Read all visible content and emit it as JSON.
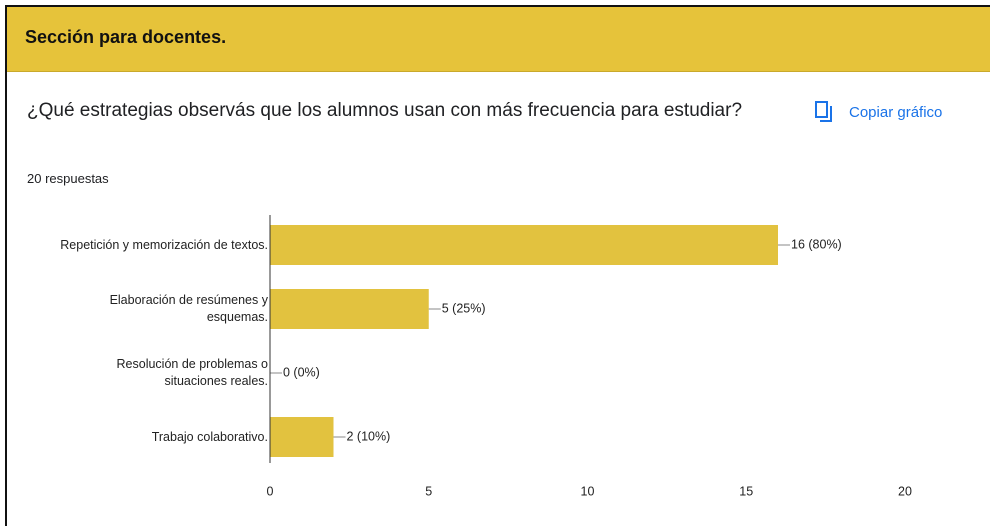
{
  "header": {
    "title": "Sección para docentes."
  },
  "question": {
    "title": "¿Qué estrategias observás que los alumnos usan con más frecuencia para estudiar?",
    "responses": "20 respuestas",
    "copy_button": "Copiar gráfico"
  },
  "chart_data": {
    "type": "hbar",
    "categories": [
      "Repetición y memorización de textos.",
      "Elaboración de resúmenes y esquemas.",
      "Resolución de problemas o situaciones reales.",
      "Trabajo colaborativo."
    ],
    "values": [
      16,
      5,
      0,
      2
    ],
    "value_labels": [
      "16 (80%)",
      "5 (25%)",
      "0 (0%)",
      "2 (10%)"
    ],
    "color": "#e2c23f",
    "xlim": [
      0,
      20
    ],
    "xticks": [
      0,
      5,
      10,
      15,
      20
    ],
    "grid": false
  }
}
